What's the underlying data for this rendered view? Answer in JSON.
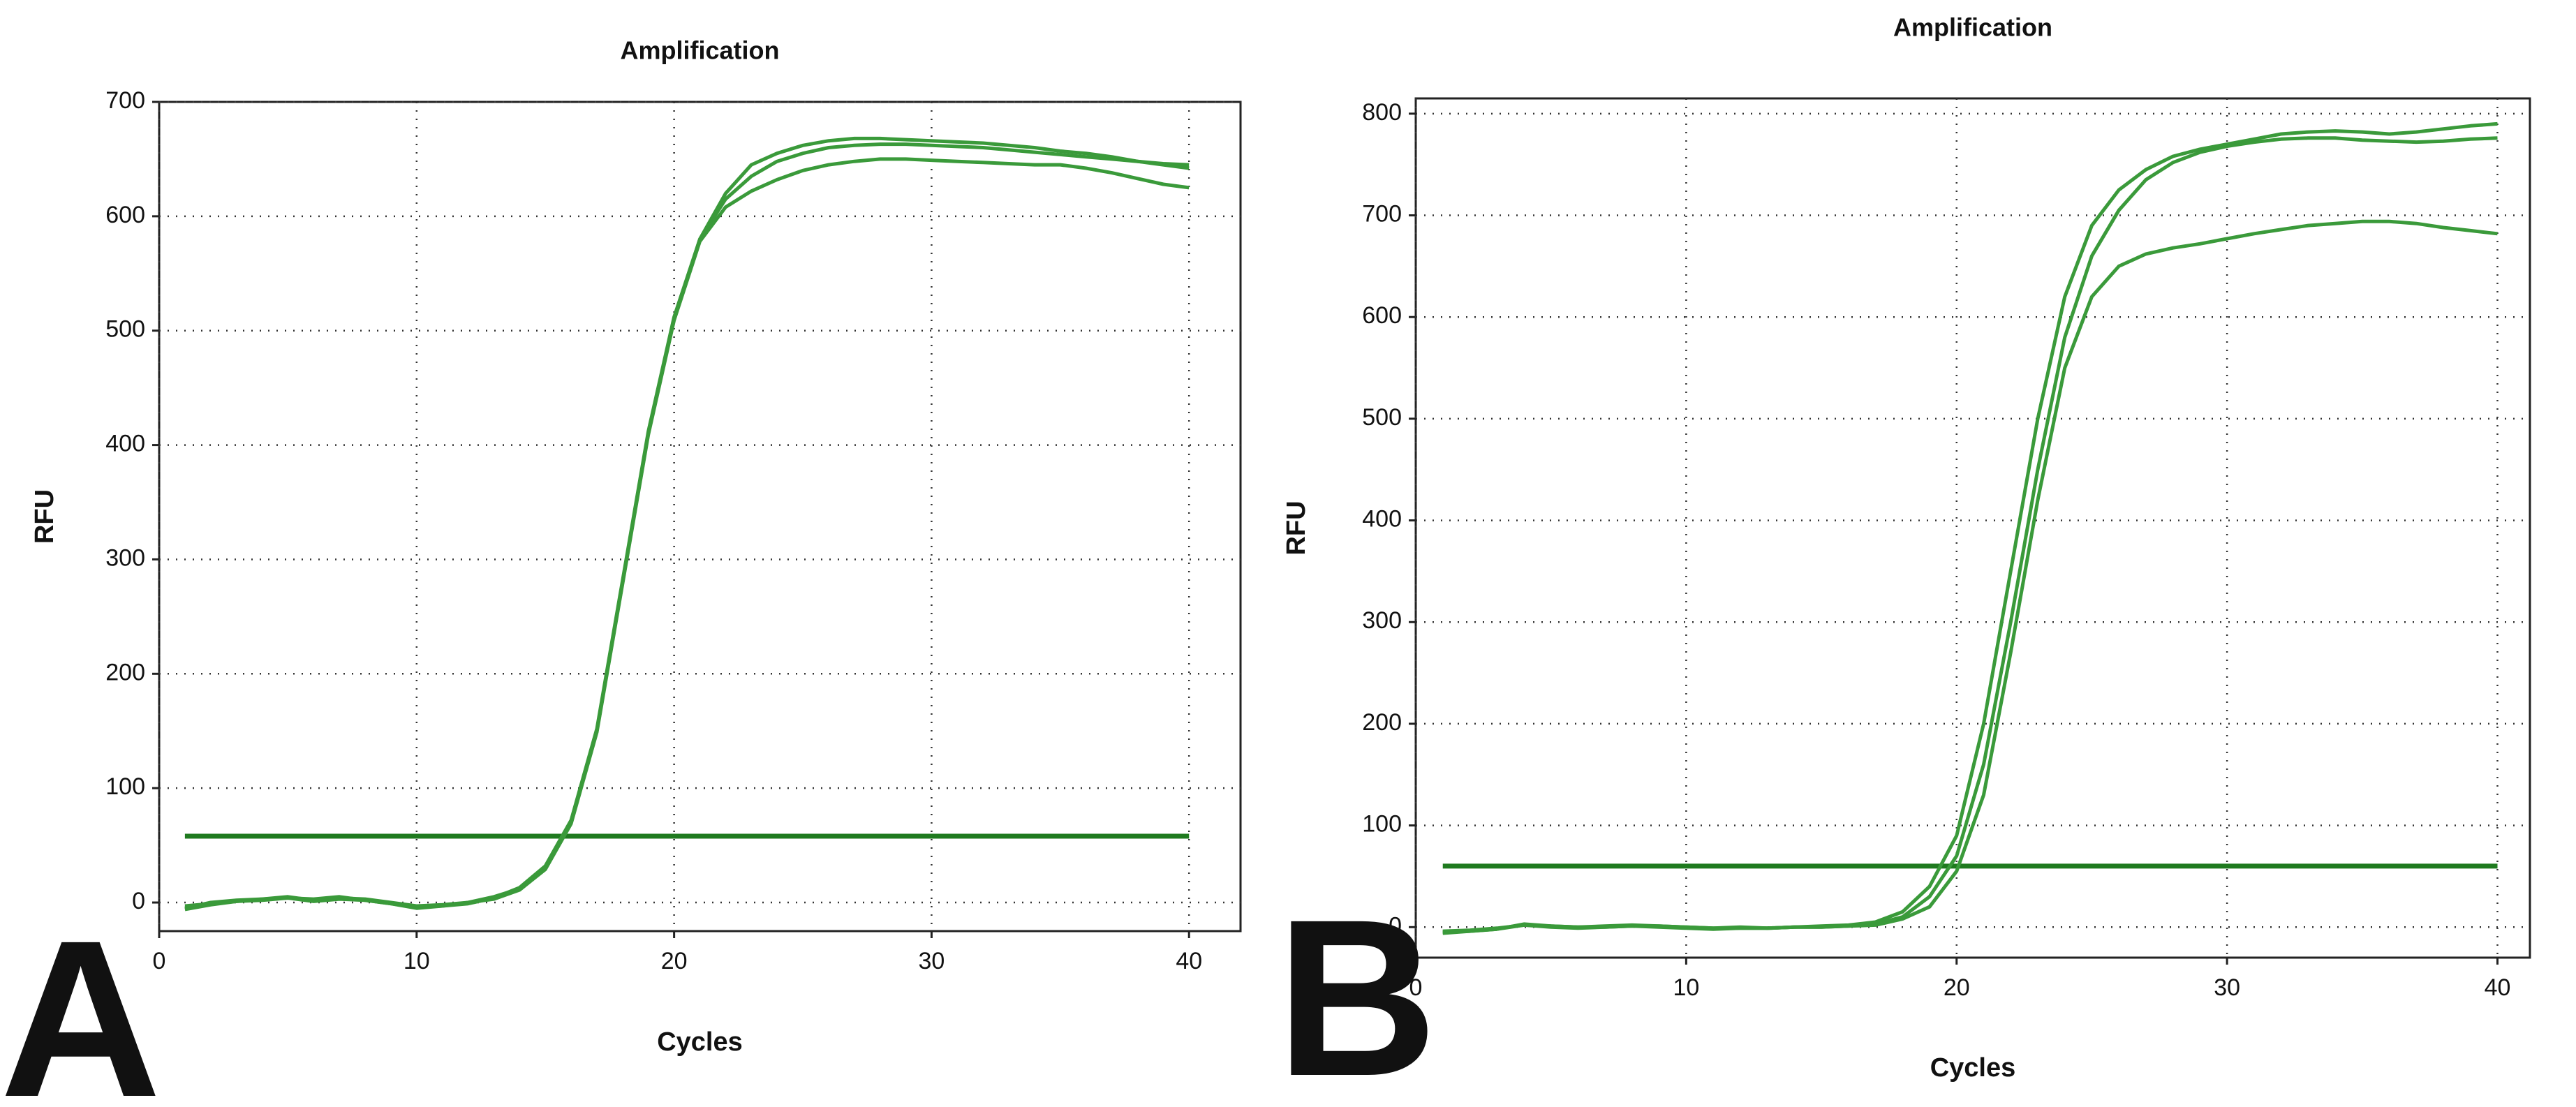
{
  "chart_data": [
    {
      "type": "line",
      "panel": "A",
      "title": "Amplification",
      "x_label": "Cycles",
      "y_label": "RFU",
      "x": [
        1,
        2,
        3,
        4,
        5,
        6,
        7,
        8,
        9,
        10,
        11,
        12,
        13,
        14,
        15,
        16,
        17,
        18,
        19,
        20,
        21,
        22,
        23,
        24,
        25,
        26,
        27,
        28,
        29,
        30,
        31,
        32,
        33,
        34,
        35,
        36,
        37,
        38,
        39,
        40
      ],
      "series": [
        {
          "color": "#3a9a3a",
          "values": [
            -5,
            0,
            2,
            3,
            5,
            2,
            4,
            3,
            0,
            -3,
            -2,
            0,
            5,
            12,
            30,
            70,
            150,
            280,
            410,
            510,
            580,
            620,
            645,
            655,
            662,
            666,
            668,
            668,
            667,
            666,
            665,
            664,
            662,
            660,
            657,
            655,
            652,
            648,
            645,
            642
          ]
        },
        {
          "color": "#3a9a3a",
          "values": [
            -3,
            -1,
            1,
            2,
            4,
            3,
            5,
            2,
            -1,
            -4,
            -3,
            -1,
            4,
            13,
            32,
            72,
            152,
            282,
            412,
            512,
            580,
            615,
            635,
            648,
            655,
            660,
            662,
            663,
            663,
            662,
            661,
            660,
            658,
            656,
            654,
            652,
            650,
            648,
            646,
            645
          ]
        },
        {
          "color": "#3a9a3a",
          "values": [
            -6,
            -2,
            1,
            3,
            4,
            1,
            3,
            2,
            -1,
            -5,
            -3,
            0,
            3,
            11,
            29,
            69,
            149,
            279,
            409,
            509,
            578,
            608,
            622,
            632,
            640,
            645,
            648,
            650,
            650,
            649,
            648,
            647,
            646,
            645,
            645,
            642,
            638,
            633,
            628,
            625
          ]
        }
      ],
      "threshold": 58,
      "threshold_color": "#1f7a1f",
      "xlim": [
        0,
        42
      ],
      "xticks": [
        0,
        10,
        20,
        30,
        40
      ],
      "ylim": [
        -25,
        700
      ],
      "yticks": [
        0,
        100,
        200,
        300,
        400,
        500,
        600,
        700
      ],
      "grid": true
    },
    {
      "type": "line",
      "panel": "B",
      "title": "Amplification",
      "x_label": "Cycles",
      "y_label": "RFU",
      "x": [
        1,
        2,
        3,
        4,
        5,
        6,
        7,
        8,
        9,
        10,
        11,
        12,
        13,
        14,
        15,
        16,
        17,
        18,
        19,
        20,
        21,
        22,
        23,
        24,
        25,
        26,
        27,
        28,
        29,
        30,
        31,
        32,
        33,
        34,
        35,
        36,
        37,
        38,
        39,
        40
      ],
      "series": [
        {
          "color": "#3a9a3a",
          "values": [
            -5,
            -4,
            -2,
            3,
            1,
            0,
            1,
            2,
            1,
            0,
            -1,
            0,
            -1,
            0,
            1,
            2,
            5,
            15,
            40,
            90,
            200,
            350,
            500,
            620,
            690,
            725,
            745,
            758,
            765,
            770,
            775,
            780,
            782,
            783,
            782,
            780,
            782,
            785,
            788,
            790
          ]
        },
        {
          "color": "#3a9a3a",
          "values": [
            -4,
            -3,
            -1,
            2,
            1,
            0,
            0,
            1,
            1,
            0,
            -1,
            -1,
            -1,
            0,
            0,
            1,
            3,
            10,
            30,
            70,
            160,
            300,
            450,
            580,
            660,
            705,
            735,
            752,
            762,
            768,
            772,
            775,
            776,
            776,
            774,
            773,
            772,
            773,
            775,
            776
          ]
        },
        {
          "color": "#3a9a3a",
          "values": [
            -6,
            -4,
            -2,
            2,
            0,
            -1,
            0,
            1,
            0,
            -1,
            -2,
            -1,
            -1,
            0,
            0,
            1,
            2,
            8,
            20,
            55,
            130,
            270,
            420,
            550,
            620,
            650,
            662,
            668,
            672,
            677,
            682,
            686,
            690,
            692,
            694,
            694,
            692,
            688,
            685,
            682
          ]
        }
      ],
      "threshold": 60,
      "threshold_color": "#1f7a1f",
      "xlim": [
        0,
        41.2
      ],
      "xticks": [
        0,
        10,
        20,
        30,
        40
      ],
      "ylim": [
        -30,
        815
      ],
      "yticks": [
        0,
        100,
        200,
        300,
        400,
        500,
        600,
        700,
        800
      ],
      "grid": true
    }
  ]
}
